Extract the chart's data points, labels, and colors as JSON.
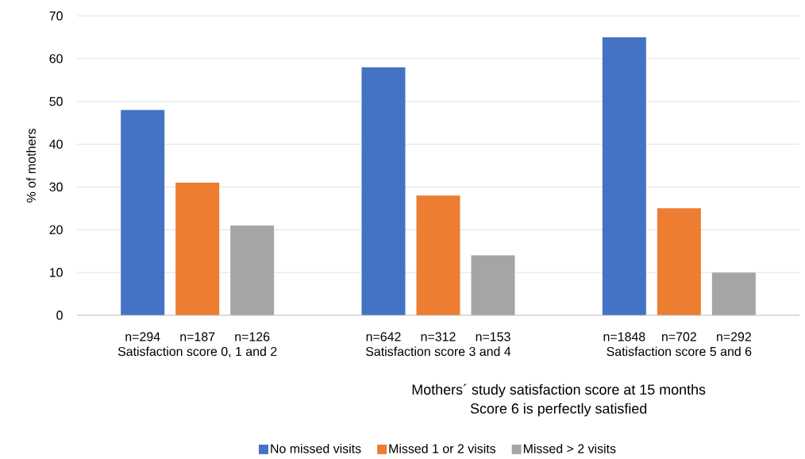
{
  "chart_data": {
    "type": "bar",
    "categories": [
      "Satisfaction score 0, 1 and 2",
      "Satisfaction score 3 and 4",
      "Satisfaction score 5 and 6"
    ],
    "series": [
      {
        "name": "No missed visits",
        "color": "#4472c4",
        "values": [
          48,
          58,
          65
        ]
      },
      {
        "name": "Missed 1 or 2 visits",
        "color": "#ed7d31",
        "values": [
          31,
          28,
          25
        ]
      },
      {
        "name": "Missed > 2 visits",
        "color": "#a5a5a5",
        "values": [
          21,
          14,
          10
        ]
      }
    ],
    "ylabel": "% of mothers",
    "xlabel": "Mothers´ study satisfaction score at 15 months",
    "annotations": [
      "n=294",
      "n=187",
      "n=126",
      "n=642",
      "n=312",
      "n=153",
      "n=1848",
      "n=702",
      "n=292",
      "Score 6 is perfectly satisfied"
    ],
    "ylim": [
      0,
      70
    ],
    "yticks": [
      0,
      10,
      20,
      30,
      40,
      50,
      60,
      70
    ],
    "grid": "y",
    "legend": "bottom"
  }
}
